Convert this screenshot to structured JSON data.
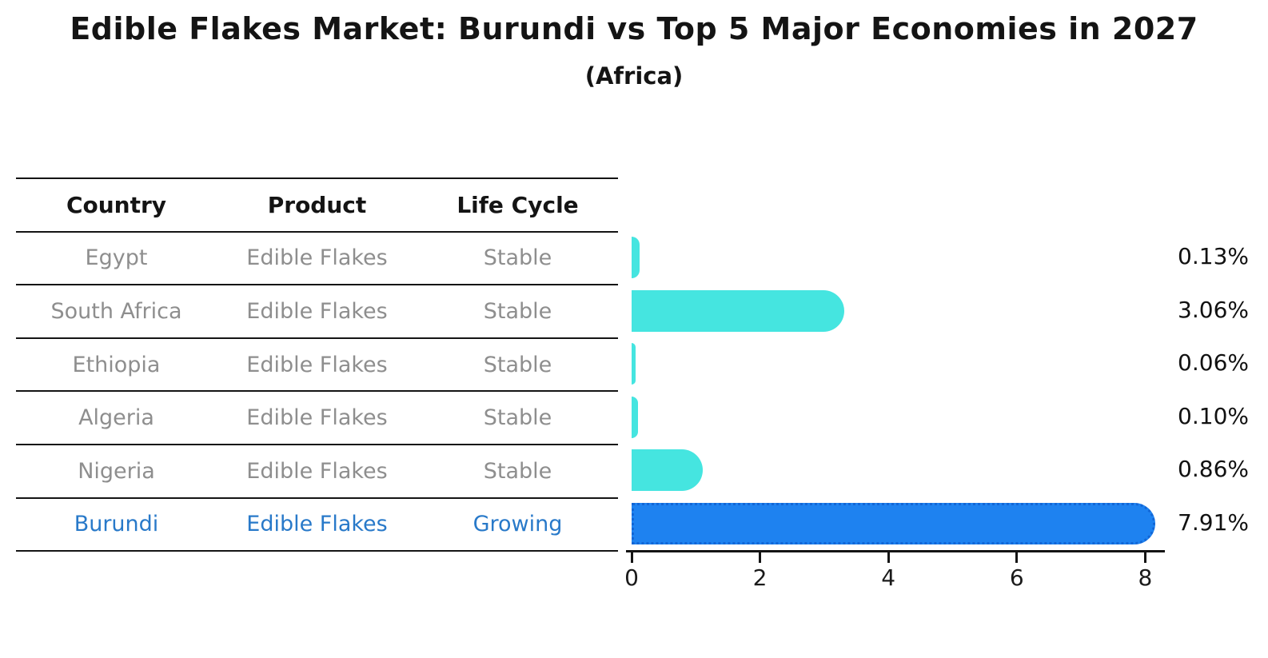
{
  "title": "Edible Flakes Market: Burundi vs Top 5 Major Economies in 2027",
  "subtitle": "(Africa)",
  "table": {
    "columns": [
      "Country",
      "Product",
      "Life Cycle"
    ],
    "rows": [
      {
        "country": "Egypt",
        "product": "Edible Flakes",
        "life_cycle": "Stable",
        "highlight": false
      },
      {
        "country": "South Africa",
        "product": "Edible Flakes",
        "life_cycle": "Stable",
        "highlight": false
      },
      {
        "country": "Ethiopia",
        "product": "Edible Flakes",
        "life_cycle": "Stable",
        "highlight": false
      },
      {
        "country": "Algeria",
        "product": "Edible Flakes",
        "life_cycle": "Stable",
        "highlight": false
      },
      {
        "country": "Nigeria",
        "product": "Edible Flakes",
        "life_cycle": "Stable",
        "highlight": false
      },
      {
        "country": "Burundi",
        "product": "Edible Flakes",
        "life_cycle": "Growing",
        "highlight": true
      }
    ]
  },
  "chart_data": {
    "type": "bar",
    "orientation": "horizontal",
    "title": "Edible Flakes Market: Burundi vs Top 5 Major Economies in 2027",
    "subtitle": "(Africa)",
    "categories": [
      "Egypt",
      "South Africa",
      "Ethiopia",
      "Algeria",
      "Nigeria",
      "Burundi"
    ],
    "values": [
      0.13,
      3.06,
      0.06,
      0.1,
      0.86,
      7.91
    ],
    "data_labels": [
      "0.13%",
      "3.06%",
      "0.06%",
      "0.10%",
      "0.86%",
      "7.91%"
    ],
    "unit": "%",
    "x_tick_labels": [
      "0",
      "2",
      "4",
      "6",
      "8"
    ],
    "x_ticks": [
      0,
      2,
      4,
      6,
      8
    ],
    "xlim": [
      0,
      8.3
    ],
    "grid": false,
    "legend": false,
    "highlight_index": 5
  },
  "colors": {
    "bar_default": "#45E5E0",
    "bar_highlight": "#1E82F0",
    "bar_highlight_border": "#1266D6",
    "highlight_text": "#2879C9",
    "row_text": "#8E8E8E",
    "header_text": "#141414",
    "label_text": "#111111",
    "axis": "#141414"
  }
}
